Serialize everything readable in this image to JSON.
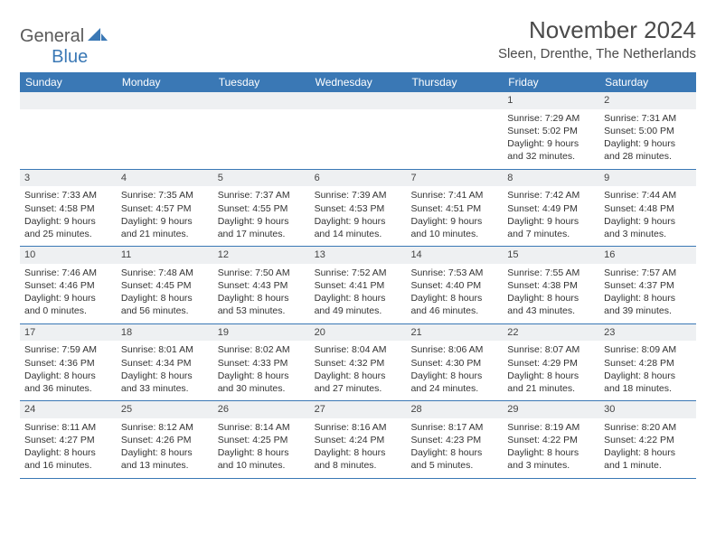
{
  "logo": {
    "part1": "General",
    "part2": "Blue"
  },
  "title": "November 2024",
  "location": "Sleen, Drenthe, The Netherlands",
  "colors": {
    "header_bg": "#3a78b5",
    "header_text": "#ffffff",
    "daynum_bg": "#eef0f2",
    "border": "#3a78b5",
    "text": "#333333",
    "logo_gray": "#5a5a5a",
    "logo_blue": "#3a78b5"
  },
  "daysOfWeek": [
    "Sunday",
    "Monday",
    "Tuesday",
    "Wednesday",
    "Thursday",
    "Friday",
    "Saturday"
  ],
  "weeks": [
    [
      {
        "blank": true
      },
      {
        "blank": true
      },
      {
        "blank": true
      },
      {
        "blank": true
      },
      {
        "blank": true
      },
      {
        "n": "1",
        "sr": "Sunrise: 7:29 AM",
        "ss": "Sunset: 5:02 PM",
        "d1": "Daylight: 9 hours",
        "d2": "and 32 minutes."
      },
      {
        "n": "2",
        "sr": "Sunrise: 7:31 AM",
        "ss": "Sunset: 5:00 PM",
        "d1": "Daylight: 9 hours",
        "d2": "and 28 minutes."
      }
    ],
    [
      {
        "n": "3",
        "sr": "Sunrise: 7:33 AM",
        "ss": "Sunset: 4:58 PM",
        "d1": "Daylight: 9 hours",
        "d2": "and 25 minutes."
      },
      {
        "n": "4",
        "sr": "Sunrise: 7:35 AM",
        "ss": "Sunset: 4:57 PM",
        "d1": "Daylight: 9 hours",
        "d2": "and 21 minutes."
      },
      {
        "n": "5",
        "sr": "Sunrise: 7:37 AM",
        "ss": "Sunset: 4:55 PM",
        "d1": "Daylight: 9 hours",
        "d2": "and 17 minutes."
      },
      {
        "n": "6",
        "sr": "Sunrise: 7:39 AM",
        "ss": "Sunset: 4:53 PM",
        "d1": "Daylight: 9 hours",
        "d2": "and 14 minutes."
      },
      {
        "n": "7",
        "sr": "Sunrise: 7:41 AM",
        "ss": "Sunset: 4:51 PM",
        "d1": "Daylight: 9 hours",
        "d2": "and 10 minutes."
      },
      {
        "n": "8",
        "sr": "Sunrise: 7:42 AM",
        "ss": "Sunset: 4:49 PM",
        "d1": "Daylight: 9 hours",
        "d2": "and 7 minutes."
      },
      {
        "n": "9",
        "sr": "Sunrise: 7:44 AM",
        "ss": "Sunset: 4:48 PM",
        "d1": "Daylight: 9 hours",
        "d2": "and 3 minutes."
      }
    ],
    [
      {
        "n": "10",
        "sr": "Sunrise: 7:46 AM",
        "ss": "Sunset: 4:46 PM",
        "d1": "Daylight: 9 hours",
        "d2": "and 0 minutes."
      },
      {
        "n": "11",
        "sr": "Sunrise: 7:48 AM",
        "ss": "Sunset: 4:45 PM",
        "d1": "Daylight: 8 hours",
        "d2": "and 56 minutes."
      },
      {
        "n": "12",
        "sr": "Sunrise: 7:50 AM",
        "ss": "Sunset: 4:43 PM",
        "d1": "Daylight: 8 hours",
        "d2": "and 53 minutes."
      },
      {
        "n": "13",
        "sr": "Sunrise: 7:52 AM",
        "ss": "Sunset: 4:41 PM",
        "d1": "Daylight: 8 hours",
        "d2": "and 49 minutes."
      },
      {
        "n": "14",
        "sr": "Sunrise: 7:53 AM",
        "ss": "Sunset: 4:40 PM",
        "d1": "Daylight: 8 hours",
        "d2": "and 46 minutes."
      },
      {
        "n": "15",
        "sr": "Sunrise: 7:55 AM",
        "ss": "Sunset: 4:38 PM",
        "d1": "Daylight: 8 hours",
        "d2": "and 43 minutes."
      },
      {
        "n": "16",
        "sr": "Sunrise: 7:57 AM",
        "ss": "Sunset: 4:37 PM",
        "d1": "Daylight: 8 hours",
        "d2": "and 39 minutes."
      }
    ],
    [
      {
        "n": "17",
        "sr": "Sunrise: 7:59 AM",
        "ss": "Sunset: 4:36 PM",
        "d1": "Daylight: 8 hours",
        "d2": "and 36 minutes."
      },
      {
        "n": "18",
        "sr": "Sunrise: 8:01 AM",
        "ss": "Sunset: 4:34 PM",
        "d1": "Daylight: 8 hours",
        "d2": "and 33 minutes."
      },
      {
        "n": "19",
        "sr": "Sunrise: 8:02 AM",
        "ss": "Sunset: 4:33 PM",
        "d1": "Daylight: 8 hours",
        "d2": "and 30 minutes."
      },
      {
        "n": "20",
        "sr": "Sunrise: 8:04 AM",
        "ss": "Sunset: 4:32 PM",
        "d1": "Daylight: 8 hours",
        "d2": "and 27 minutes."
      },
      {
        "n": "21",
        "sr": "Sunrise: 8:06 AM",
        "ss": "Sunset: 4:30 PM",
        "d1": "Daylight: 8 hours",
        "d2": "and 24 minutes."
      },
      {
        "n": "22",
        "sr": "Sunrise: 8:07 AM",
        "ss": "Sunset: 4:29 PM",
        "d1": "Daylight: 8 hours",
        "d2": "and 21 minutes."
      },
      {
        "n": "23",
        "sr": "Sunrise: 8:09 AM",
        "ss": "Sunset: 4:28 PM",
        "d1": "Daylight: 8 hours",
        "d2": "and 18 minutes."
      }
    ],
    [
      {
        "n": "24",
        "sr": "Sunrise: 8:11 AM",
        "ss": "Sunset: 4:27 PM",
        "d1": "Daylight: 8 hours",
        "d2": "and 16 minutes."
      },
      {
        "n": "25",
        "sr": "Sunrise: 8:12 AM",
        "ss": "Sunset: 4:26 PM",
        "d1": "Daylight: 8 hours",
        "d2": "and 13 minutes."
      },
      {
        "n": "26",
        "sr": "Sunrise: 8:14 AM",
        "ss": "Sunset: 4:25 PM",
        "d1": "Daylight: 8 hours",
        "d2": "and 10 minutes."
      },
      {
        "n": "27",
        "sr": "Sunrise: 8:16 AM",
        "ss": "Sunset: 4:24 PM",
        "d1": "Daylight: 8 hours",
        "d2": "and 8 minutes."
      },
      {
        "n": "28",
        "sr": "Sunrise: 8:17 AM",
        "ss": "Sunset: 4:23 PM",
        "d1": "Daylight: 8 hours",
        "d2": "and 5 minutes."
      },
      {
        "n": "29",
        "sr": "Sunrise: 8:19 AM",
        "ss": "Sunset: 4:22 PM",
        "d1": "Daylight: 8 hours",
        "d2": "and 3 minutes."
      },
      {
        "n": "30",
        "sr": "Sunrise: 8:20 AM",
        "ss": "Sunset: 4:22 PM",
        "d1": "Daylight: 8 hours",
        "d2": "and 1 minute."
      }
    ]
  ]
}
